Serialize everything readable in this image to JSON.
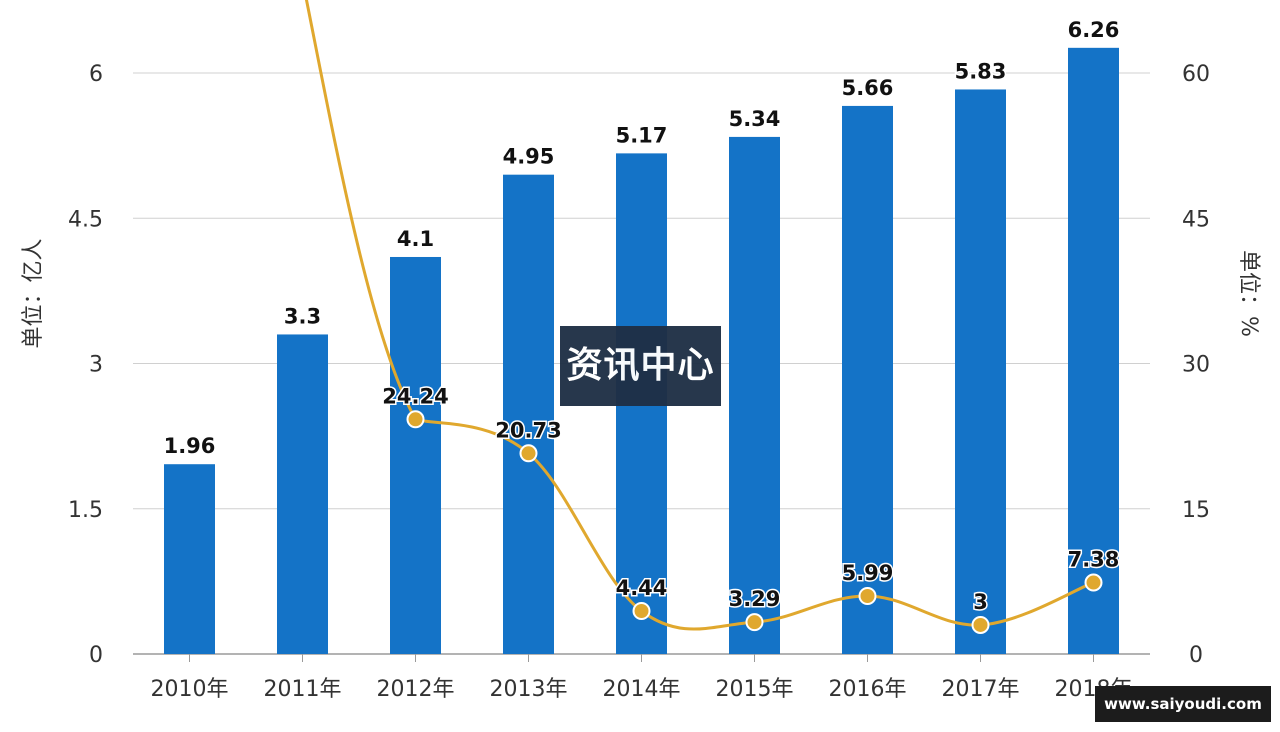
{
  "chart_data": {
    "type": "bar",
    "categories": [
      "2010年",
      "2011年",
      "2012年",
      "2013年",
      "2014年",
      "2015年",
      "2016年",
      "2017年",
      "2018年"
    ],
    "series": [
      {
        "type": "bar",
        "axis": "left",
        "values": [
          1.96,
          3.3,
          4.1,
          4.95,
          5.17,
          5.34,
          5.66,
          5.83,
          6.26
        ],
        "color": "#1473c7"
      },
      {
        "type": "line",
        "axis": "right",
        "values": [
          null,
          null,
          24.24,
          20.73,
          4.44,
          3.29,
          5.99,
          3,
          7.38
        ],
        "color": "#e0a82e"
      }
    ],
    "ylabel": "单位：亿人",
    "y2label": "单位：%",
    "ylim": [
      0,
      6
    ],
    "y2lim": [
      0,
      60
    ],
    "yticks": [
      "0",
      "1.5",
      "3",
      "4.5",
      "6"
    ],
    "y2ticks": [
      "0",
      "15",
      "30",
      "45",
      "60"
    ],
    "grid": true,
    "legend": "none"
  },
  "overlay": {
    "title": "资讯中心",
    "site": "www.saiyoudi.com"
  }
}
